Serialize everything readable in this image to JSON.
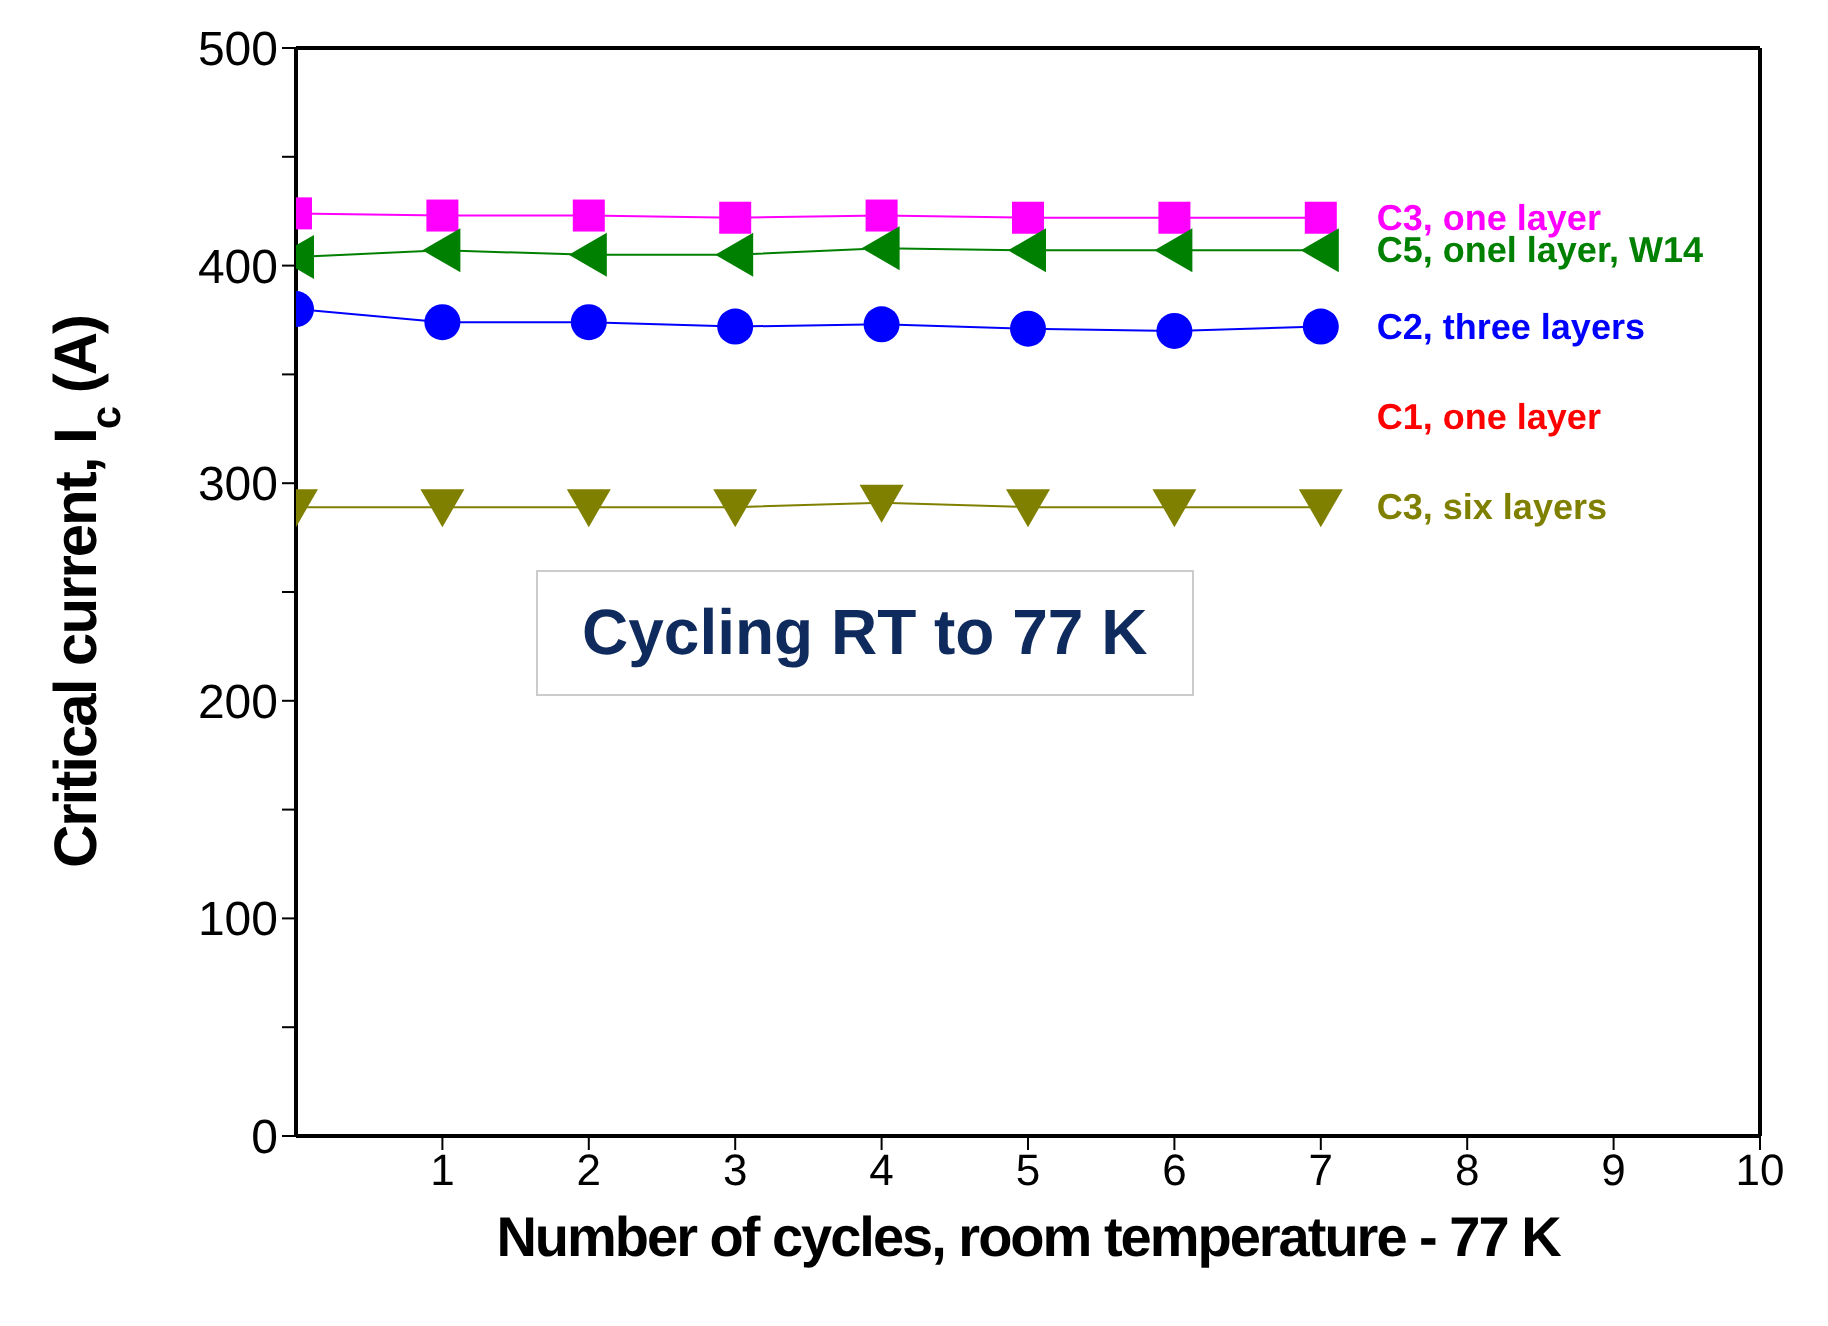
{
  "chart_data": {
    "type": "line",
    "xlabel": "Number of cycles, room temperature - 77 K",
    "ylabel": "Critical current, I$_{c}$ (A)",
    "x": [
      0,
      1,
      2,
      3,
      4,
      5,
      6,
      7
    ],
    "series": [
      {
        "name": "C3, one layer",
        "color": "#ff00ff",
        "marker": "square",
        "values": [
          424,
          423,
          423,
          422,
          423,
          422,
          422,
          422
        ]
      },
      {
        "name": "C5, onel layer, W14",
        "color": "#008000",
        "marker": "triangle-left",
        "values": [
          404,
          407,
          405,
          405,
          408,
          407,
          407,
          407
        ]
      },
      {
        "name": "C2, three layers",
        "color": "#0000ff",
        "marker": "circle",
        "values": [
          380,
          374,
          374,
          372,
          373,
          371,
          370,
          372
        ]
      },
      {
        "name": "C1, one layer",
        "color": "#ff0000",
        "marker": "none",
        "values": [
          null,
          null,
          null,
          null,
          null,
          null,
          null,
          null
        ]
      },
      {
        "name": "C3, six layers",
        "color": "#808000",
        "marker": "triangle-down",
        "values": [
          289,
          289,
          289,
          289,
          291,
          289,
          289,
          289
        ]
      }
    ],
    "xlim": [
      0,
      10
    ],
    "xticks": [
      1,
      2,
      3,
      4,
      5,
      6,
      7,
      8,
      9,
      10
    ],
    "ylim": [
      0,
      500
    ],
    "yticks": [
      0,
      {
        "value": 50,
        "label": null
      },
      100,
      {
        "value": 150,
        "label": null
      },
      200,
      {
        "value": 250,
        "label": null
      },
      300,
      {
        "value": 350,
        "label": null
      },
      400,
      {
        "value": 450,
        "label": null
      },
      500
    ],
    "annotations": [
      "Cycling RT to 77 K"
    ]
  }
}
